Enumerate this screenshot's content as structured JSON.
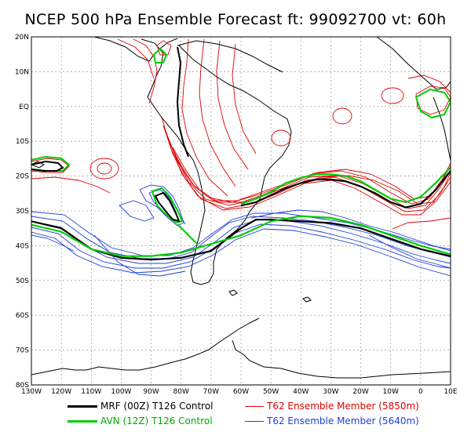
{
  "title": "NCEP 500 hPa Ensemble Forecast   ft: 99092700 vt: 60h",
  "colors": {
    "control_mrf": "#000000",
    "control_avn": "#00cc00",
    "member_5850": "#dd0000",
    "member_5640": "#1f3fd6",
    "coast": "#000000",
    "grid": "#888888"
  },
  "legend": [
    {
      "label": "MRF (00Z) T126 Control",
      "color": "#000000"
    },
    {
      "label": "AVN (12Z) T126 Control",
      "color": "#00cc00"
    },
    {
      "label": "T62 Ensemble Member (5850m)",
      "color": "#dd0000"
    },
    {
      "label": "T62 Ensemble Member (5640m)",
      "color": "#1f3fd6"
    }
  ],
  "chart_data": {
    "type": "line",
    "title": "NCEP 500 hPa Ensemble Forecast   ft: 99092700 vt: 60h",
    "x_ticks": [
      "130W",
      "120W",
      "110W",
      "100W",
      "90W",
      "80W",
      "70W",
      "60W",
      "50W",
      "40W",
      "30W",
      "20W",
      "10W",
      "0",
      "10E"
    ],
    "y_ticks": [
      "20N",
      "10N",
      "EQ",
      "10S",
      "20S",
      "30S",
      "40S",
      "50S",
      "60S",
      "70S",
      "80S"
    ],
    "xlim": [
      -130,
      10
    ],
    "ylim": [
      -80,
      20
    ],
    "grid": true,
    "series": [
      {
        "name": "MRF (00Z) T126 Control",
        "contour_m": 5850,
        "color": "#000000",
        "x": [
          -60,
          -55,
          -50,
          -45,
          -40,
          -35,
          -30,
          -25,
          -20,
          -15,
          -10,
          -5,
          0,
          5,
          10
        ],
        "y": [
          -28.5,
          -27.5,
          -25.5,
          -23.5,
          -22,
          -21,
          -21,
          -21.5,
          -23,
          -25,
          -27.5,
          -29,
          -28,
          -24,
          -18.5
        ]
      },
      {
        "name": "AVN (12Z) T126 Control",
        "contour_m": 5850,
        "color": "#00cc00",
        "x": [
          -60,
          -55,
          -50,
          -45,
          -40,
          -35,
          -30,
          -25,
          -20,
          -15,
          -10,
          -5,
          0,
          5,
          10
        ],
        "y": [
          -28,
          -26.5,
          -24.5,
          -22,
          -20.5,
          -19.5,
          -19.5,
          -20,
          -21.5,
          -24,
          -26.5,
          -27.5,
          -26,
          -22,
          -17.5
        ]
      },
      {
        "name": "MRF (00Z) T126 Control",
        "contour_m": 5640,
        "color": "#000000",
        "x": [
          -130,
          -120,
          -110,
          -100,
          -90,
          -80,
          -70,
          -60,
          -55,
          -50,
          -40,
          -30,
          -20,
          -10,
          0,
          10
        ],
        "y": [
          -33,
          -35,
          -41,
          -43.5,
          -44,
          -43.5,
          -41.5,
          -35,
          -32.5,
          -32.5,
          -33,
          -33.5,
          -35,
          -38,
          -41,
          -43
        ]
      },
      {
        "name": "AVN (12Z) T126 Control",
        "contour_m": 5640,
        "color": "#00cc00",
        "x": [
          -130,
          -120,
          -110,
          -100,
          -90,
          -80,
          -70,
          -60,
          -50,
          -40,
          -30,
          -20,
          -10,
          0,
          10
        ],
        "y": [
          -34,
          -36,
          -41,
          -43,
          -43,
          -42,
          -39.5,
          -37,
          -33,
          -31.5,
          -32,
          -34,
          -37,
          -40,
          -42.5
        ]
      }
    ]
  }
}
